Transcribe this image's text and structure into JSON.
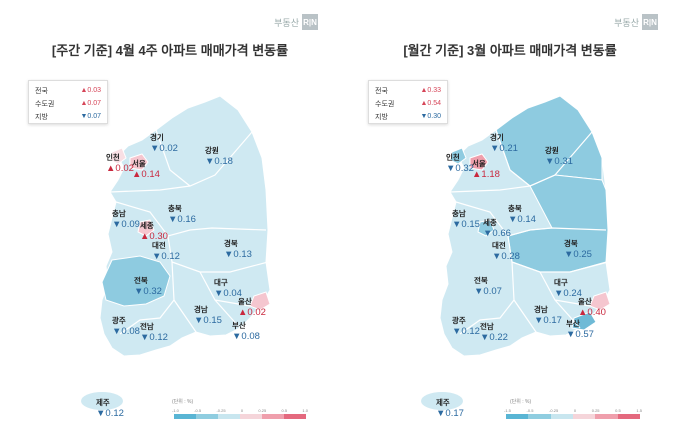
{
  "brand": {
    "text": "부동산",
    "box": "R|N"
  },
  "legend_unit": "(단위 : %)",
  "legend_colors": [
    "#59b5d4",
    "#8fcde0",
    "#c8e6ef",
    "#f5d5da",
    "#ef9fac",
    "#e4697e"
  ],
  "panels": [
    {
      "title": "[주간 기준] 4월 4주 아파트 매매가격 변동률",
      "summary": [
        {
          "name": "전국",
          "value": "0.03",
          "dir": "up"
        },
        {
          "name": "수도권",
          "value": "0.07",
          "dir": "up"
        },
        {
          "name": "지방",
          "value": "0.07",
          "dir": "down"
        }
      ],
      "legend_ticks": [
        "-1.0",
        "-0.5",
        "-0.25",
        "0",
        "0.25",
        "0.5",
        "1.0"
      ],
      "regions": [
        {
          "name": "경기",
          "value": "0.02",
          "dir": "down"
        },
        {
          "name": "강원",
          "value": "0.18",
          "dir": "down"
        },
        {
          "name": "인천",
          "value": "0.02",
          "dir": "up"
        },
        {
          "name": "서울",
          "value": "0.14",
          "dir": "up"
        },
        {
          "name": "충남",
          "value": "0.09",
          "dir": "down"
        },
        {
          "name": "세종",
          "value": "0.30",
          "dir": "up"
        },
        {
          "name": "충북",
          "value": "0.16",
          "dir": "down"
        },
        {
          "name": "대전",
          "value": "0.12",
          "dir": "down"
        },
        {
          "name": "경북",
          "value": "0.13",
          "dir": "down"
        },
        {
          "name": "전북",
          "value": "0.32",
          "dir": "down"
        },
        {
          "name": "대구",
          "value": "0.04",
          "dir": "down"
        },
        {
          "name": "울산",
          "value": "0.02",
          "dir": "up"
        },
        {
          "name": "경남",
          "value": "0.15",
          "dir": "down"
        },
        {
          "name": "광주",
          "value": "0.08",
          "dir": "down"
        },
        {
          "name": "전남",
          "value": "0.12",
          "dir": "down"
        },
        {
          "name": "부산",
          "value": "0.08",
          "dir": "down"
        },
        {
          "name": "제주",
          "value": "0.12",
          "dir": "down"
        }
      ]
    },
    {
      "title": "[월간 기준] 3월 아파트 매매가격 변동률",
      "summary": [
        {
          "name": "전국",
          "value": "0.33",
          "dir": "up"
        },
        {
          "name": "수도권",
          "value": "0.54",
          "dir": "up"
        },
        {
          "name": "지방",
          "value": "0.30",
          "dir": "down"
        }
      ],
      "legend_ticks": [
        "-1.5",
        "-0.5",
        "-0.25",
        "0",
        "0.25",
        "0.5",
        "1.5"
      ],
      "regions": [
        {
          "name": "경기",
          "value": "0.21",
          "dir": "down"
        },
        {
          "name": "강원",
          "value": "0.31",
          "dir": "down"
        },
        {
          "name": "인천",
          "value": "0.32",
          "dir": "down"
        },
        {
          "name": "서울",
          "value": "1.18",
          "dir": "up"
        },
        {
          "name": "충남",
          "value": "0.15",
          "dir": "down"
        },
        {
          "name": "세종",
          "value": "0.66",
          "dir": "down"
        },
        {
          "name": "충북",
          "value": "0.14",
          "dir": "down"
        },
        {
          "name": "대전",
          "value": "0.28",
          "dir": "down"
        },
        {
          "name": "경북",
          "value": "0.25",
          "dir": "down"
        },
        {
          "name": "전북",
          "value": "0.07",
          "dir": "down"
        },
        {
          "name": "대구",
          "value": "0.24",
          "dir": "down"
        },
        {
          "name": "울산",
          "value": "0.40",
          "dir": "up"
        },
        {
          "name": "경남",
          "value": "0.17",
          "dir": "down"
        },
        {
          "name": "광주",
          "value": "0.12",
          "dir": "down"
        },
        {
          "name": "전남",
          "value": "0.22",
          "dir": "down"
        },
        {
          "name": "부산",
          "value": "0.57",
          "dir": "down"
        },
        {
          "name": "제주",
          "value": "0.17",
          "dir": "down"
        }
      ]
    }
  ]
}
